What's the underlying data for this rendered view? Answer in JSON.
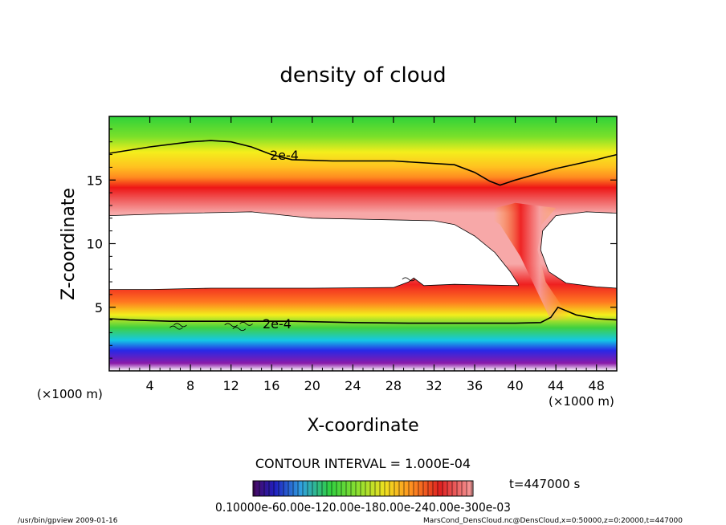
{
  "chart_data": {
    "type": "heatmap",
    "title": "density of cloud",
    "xlabel": "X-coordinate",
    "ylabel": "Z-coordinate",
    "x_unit_left": "(×1000 m)",
    "x_unit_right": "(×1000 m)",
    "xlim": [
      0,
      50
    ],
    "ylim": [
      0,
      20
    ],
    "xticks": [
      4,
      8,
      12,
      16,
      20,
      24,
      28,
      32,
      36,
      40,
      44,
      48
    ],
    "yticks": [
      5,
      10,
      15
    ],
    "contour_interval_text": "CONTOUR INTERVAL = 1.000E-04",
    "contour_label": "2e-4",
    "contour_label_upper": "2e-4",
    "contour_label_lower": "2e-4",
    "colorbar_labels_text": "0.10000e-60.00e-120.00e-180.00e-240.00e-300e-03",
    "time_text": "t=447000 s",
    "footer_left": "/usr/bin/gpview   2009-01-16",
    "footer_right": "MarsCond_DensCloud.nc@DensCloud,x=0:50000,z=0:20000,t=447000",
    "colors": {
      "green": "#2fd23a",
      "yellow": "#f4ee1c",
      "orange": "#ffa020",
      "red": "#ee1616",
      "pink": "#f7a0a0",
      "cyan": "#14c8e6",
      "blue": "#2828e6",
      "purple": "#8a1aa8",
      "frame": "#000000"
    },
    "upper_contour": [
      [
        0,
        17.1
      ],
      [
        4,
        17.6
      ],
      [
        8,
        18.0
      ],
      [
        10,
        18.1
      ],
      [
        12,
        18.0
      ],
      [
        14,
        17.6
      ],
      [
        16,
        17.0
      ],
      [
        18,
        16.6
      ],
      [
        22,
        16.5
      ],
      [
        28,
        16.5
      ],
      [
        34,
        16.2
      ],
      [
        36,
        15.6
      ],
      [
        37.5,
        14.9
      ],
      [
        38.5,
        14.6
      ],
      [
        40,
        15.0
      ],
      [
        44,
        15.9
      ],
      [
        48,
        16.6
      ],
      [
        50,
        17.0
      ]
    ],
    "lower_contour": [
      [
        0,
        4.1
      ],
      [
        2,
        4.0
      ],
      [
        6,
        3.9
      ],
      [
        12,
        3.9
      ],
      [
        18,
        3.9
      ],
      [
        24,
        3.8
      ],
      [
        30,
        3.75
      ],
      [
        36,
        3.75
      ],
      [
        40,
        3.75
      ],
      [
        42.5,
        3.8
      ],
      [
        43.5,
        4.2
      ],
      [
        44.2,
        5.0
      ],
      [
        46,
        4.4
      ],
      [
        48,
        4.1
      ],
      [
        50,
        4.0
      ]
    ],
    "void_left": {
      "top": [
        [
          0,
          12.2
        ],
        [
          4,
          12.3
        ],
        [
          8,
          12.4
        ],
        [
          14,
          12.5
        ],
        [
          20,
          12.0
        ],
        [
          26,
          11.9
        ],
        [
          32,
          11.8
        ],
        [
          34,
          11.5
        ],
        [
          36,
          10.6
        ],
        [
          38,
          9.3
        ],
        [
          39.5,
          7.8
        ],
        [
          40.3,
          6.8
        ]
      ],
      "bottom": [
        [
          40.3,
          6.7
        ],
        [
          34,
          6.8
        ],
        [
          31,
          6.7
        ],
        [
          30,
          7.3
        ],
        [
          29.5,
          7.0
        ],
        [
          28,
          6.55
        ],
        [
          20,
          6.5
        ],
        [
          10,
          6.5
        ],
        [
          4,
          6.4
        ],
        [
          0,
          6.4
        ]
      ]
    },
    "void_right": [
      [
        50,
        12.4
      ],
      [
        47,
        12.5
      ],
      [
        44,
        12.2
      ],
      [
        42.7,
        11.0
      ],
      [
        42.5,
        9.5
      ],
      [
        43.3,
        7.8
      ],
      [
        45,
        6.9
      ],
      [
        48,
        6.6
      ],
      [
        50,
        6.5
      ]
    ]
  }
}
